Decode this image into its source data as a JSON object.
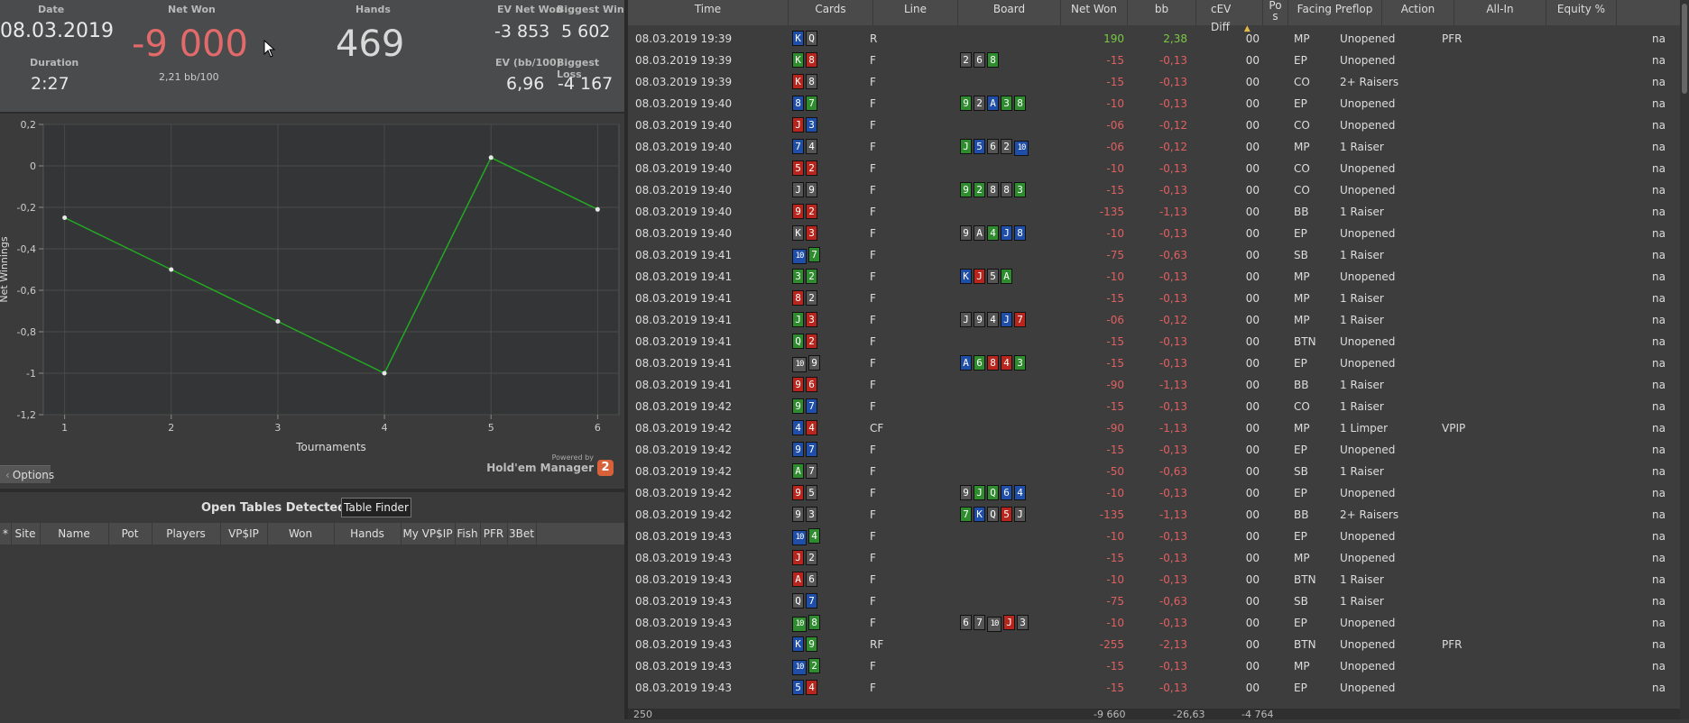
{
  "stats": {
    "date_label": "Date",
    "date_value": "08.03.2019",
    "net_won_label": "Net Won",
    "net_won_value": "-9 000",
    "net_won_sub": "2,21 bb/100",
    "hands_label": "Hands",
    "hands_value": "469",
    "ev_net_won_label": "EV Net Won",
    "ev_net_won_value": "-3 853",
    "biggest_win_label": "Biggest Win",
    "biggest_win_value": "5 602",
    "duration_label": "Duration",
    "duration_value": "2:27",
    "ev_bb_label": "EV (bb/100)",
    "ev_bb_value": "6,96",
    "biggest_loss_label": "Biggest Loss",
    "biggest_loss_value": "-4 167"
  },
  "chart_data": {
    "type": "line",
    "x": [
      1,
      2,
      3,
      4,
      5,
      6
    ],
    "series": [
      {
        "values": [
          -0.25,
          -0.5,
          -0.75,
          -1.0,
          0.04,
          -0.21
        ]
      }
    ],
    "xlabel": "Tournaments",
    "ylabel": "Net Winnings",
    "ylim": [
      -1.2,
      0.2
    ],
    "yticks": [
      "0,2",
      "0",
      "-0,2",
      "-0,4",
      "-0,6",
      "-0,8",
      "-1",
      "-1,2"
    ],
    "xticks": [
      "1",
      "2",
      "3",
      "4",
      "5",
      "6"
    ],
    "line_color": "#22aa22",
    "grid": true
  },
  "branding": {
    "powered_by": "Powered by",
    "product": "Hold'em Manager",
    "badge": "2"
  },
  "options_label": "Options",
  "open_tables": {
    "title": "Open Tables Detected",
    "finder_button": "Table Finder",
    "columns": [
      "*",
      "Site",
      "Name",
      "Pot",
      "Players",
      "VP$IP",
      "Won",
      "Hands",
      "My VP$IP",
      "Fish",
      "PFR",
      "3Bet"
    ]
  },
  "grid": {
    "columns": [
      "Time",
      "Cards",
      "Line",
      "Board",
      "Net Won",
      "bb",
      "cEV Diff",
      "Pos",
      "Facing Preflop",
      "Action",
      "All-In",
      "Equity %"
    ],
    "pos_header_top": "Po",
    "pos_header_bottom": "s",
    "rows": [
      {
        "time": "08.03.2019 19:39",
        "cards": [
          [
            "K",
            "d"
          ],
          [
            "Q",
            "s"
          ]
        ],
        "line": "R",
        "board": [],
        "net": "190",
        "bb": "2,38",
        "cev": "00",
        "pos": "MP",
        "facing": "Unopened",
        "action": "PFR",
        "equity": "na"
      },
      {
        "time": "08.03.2019 19:39",
        "cards": [
          [
            "K",
            "c"
          ],
          [
            "8",
            "h"
          ]
        ],
        "line": "F",
        "board": [
          [
            "2",
            "s"
          ],
          [
            "6",
            "s"
          ],
          [
            "8",
            "c"
          ]
        ],
        "net": "-15",
        "bb": "-0,13",
        "cev": "00",
        "pos": "EP",
        "facing": "Unopened",
        "action": "",
        "equity": "na"
      },
      {
        "time": "08.03.2019 19:39",
        "cards": [
          [
            "K",
            "h"
          ],
          [
            "8",
            "s"
          ]
        ],
        "line": "F",
        "board": [],
        "net": "-15",
        "bb": "-0,13",
        "cev": "00",
        "pos": "CO",
        "facing": "2+ Raisers",
        "action": "",
        "equity": "na"
      },
      {
        "time": "08.03.2019 19:40",
        "cards": [
          [
            "8",
            "d"
          ],
          [
            "7",
            "c"
          ]
        ],
        "line": "F",
        "board": [
          [
            "9",
            "c"
          ],
          [
            "2",
            "s"
          ],
          [
            "A",
            "d"
          ],
          [
            "3",
            "c"
          ],
          [
            "8",
            "c"
          ]
        ],
        "net": "-10",
        "bb": "-0,13",
        "cev": "00",
        "pos": "EP",
        "facing": "Unopened",
        "action": "",
        "equity": "na"
      },
      {
        "time": "08.03.2019 19:40",
        "cards": [
          [
            "J",
            "h"
          ],
          [
            "3",
            "d"
          ]
        ],
        "line": "F",
        "board": [],
        "net": "-06",
        "bb": "-0,12",
        "cev": "00",
        "pos": "CO",
        "facing": "Unopened",
        "action": "",
        "equity": "na"
      },
      {
        "time": "08.03.2019 19:40",
        "cards": [
          [
            "7",
            "d"
          ],
          [
            "4",
            "s"
          ]
        ],
        "line": "F",
        "board": [
          [
            "J",
            "c"
          ],
          [
            "5",
            "d"
          ],
          [
            "6",
            "s"
          ],
          [
            "2",
            "s"
          ],
          [
            "10",
            "d"
          ]
        ],
        "net": "-06",
        "bb": "-0,12",
        "cev": "00",
        "pos": "MP",
        "facing": "1 Raiser",
        "action": "",
        "equity": "na"
      },
      {
        "time": "08.03.2019 19:40",
        "cards": [
          [
            "5",
            "h"
          ],
          [
            "2",
            "h"
          ]
        ],
        "line": "F",
        "board": [],
        "net": "-10",
        "bb": "-0,13",
        "cev": "00",
        "pos": "CO",
        "facing": "Unopened",
        "action": "",
        "equity": "na"
      },
      {
        "time": "08.03.2019 19:40",
        "cards": [
          [
            "J",
            "s"
          ],
          [
            "9",
            "s"
          ]
        ],
        "line": "F",
        "board": [
          [
            "9",
            "c"
          ],
          [
            "2",
            "c"
          ],
          [
            "8",
            "s"
          ],
          [
            "8",
            "s"
          ],
          [
            "3",
            "c"
          ]
        ],
        "net": "-15",
        "bb": "-0,13",
        "cev": "00",
        "pos": "CO",
        "facing": "Unopened",
        "action": "",
        "equity": "na"
      },
      {
        "time": "08.03.2019 19:40",
        "cards": [
          [
            "9",
            "h"
          ],
          [
            "2",
            "h"
          ]
        ],
        "line": "F",
        "board": [],
        "net": "-135",
        "bb": "-1,13",
        "cev": "00",
        "pos": "BB",
        "facing": "1 Raiser",
        "action": "",
        "equity": "na"
      },
      {
        "time": "08.03.2019 19:40",
        "cards": [
          [
            "K",
            "s"
          ],
          [
            "3",
            "h"
          ]
        ],
        "line": "F",
        "board": [
          [
            "9",
            "s"
          ],
          [
            "A",
            "s"
          ],
          [
            "4",
            "c"
          ],
          [
            "J",
            "d"
          ],
          [
            "8",
            "d"
          ]
        ],
        "net": "-10",
        "bb": "-0,13",
        "cev": "00",
        "pos": "EP",
        "facing": "Unopened",
        "action": "",
        "equity": "na"
      },
      {
        "time": "08.03.2019 19:41",
        "cards": [
          [
            "10",
            "d"
          ],
          [
            "7",
            "c"
          ]
        ],
        "line": "F",
        "board": [],
        "net": "-75",
        "bb": "-0,63",
        "cev": "00",
        "pos": "SB",
        "facing": "1 Raiser",
        "action": "",
        "equity": "na"
      },
      {
        "time": "08.03.2019 19:41",
        "cards": [
          [
            "3",
            "c"
          ],
          [
            "2",
            "c"
          ]
        ],
        "line": "F",
        "board": [
          [
            "K",
            "d"
          ],
          [
            "J",
            "h"
          ],
          [
            "5",
            "s"
          ],
          [
            "A",
            "c"
          ]
        ],
        "net": "-10",
        "bb": "-0,13",
        "cev": "00",
        "pos": "MP",
        "facing": "Unopened",
        "action": "",
        "equity": "na"
      },
      {
        "time": "08.03.2019 19:41",
        "cards": [
          [
            "8",
            "h"
          ],
          [
            "2",
            "s"
          ]
        ],
        "line": "F",
        "board": [],
        "net": "-15",
        "bb": "-0,13",
        "cev": "00",
        "pos": "MP",
        "facing": "1 Raiser",
        "action": "",
        "equity": "na"
      },
      {
        "time": "08.03.2019 19:41",
        "cards": [
          [
            "J",
            "c"
          ],
          [
            "3",
            "h"
          ]
        ],
        "line": "F",
        "board": [
          [
            "J",
            "s"
          ],
          [
            "9",
            "s"
          ],
          [
            "4",
            "s"
          ],
          [
            "J",
            "d"
          ],
          [
            "7",
            "h"
          ]
        ],
        "net": "-06",
        "bb": "-0,12",
        "cev": "00",
        "pos": "MP",
        "facing": "1 Raiser",
        "action": "",
        "equity": "na"
      },
      {
        "time": "08.03.2019 19:41",
        "cards": [
          [
            "Q",
            "c"
          ],
          [
            "2",
            "h"
          ]
        ],
        "line": "F",
        "board": [],
        "net": "-15",
        "bb": "-0,13",
        "cev": "00",
        "pos": "BTN",
        "facing": "Unopened",
        "action": "",
        "equity": "na"
      },
      {
        "time": "08.03.2019 19:41",
        "cards": [
          [
            "10",
            "s"
          ],
          [
            "9",
            "s"
          ]
        ],
        "line": "F",
        "board": [
          [
            "A",
            "d"
          ],
          [
            "6",
            "c"
          ],
          [
            "8",
            "h"
          ],
          [
            "4",
            "h"
          ],
          [
            "3",
            "c"
          ]
        ],
        "net": "-15",
        "bb": "-0,13",
        "cev": "00",
        "pos": "EP",
        "facing": "Unopened",
        "action": "",
        "equity": "na"
      },
      {
        "time": "08.03.2019 19:41",
        "cards": [
          [
            "9",
            "h"
          ],
          [
            "6",
            "h"
          ]
        ],
        "line": "F",
        "board": [],
        "net": "-90",
        "bb": "-1,13",
        "cev": "00",
        "pos": "BB",
        "facing": "1 Raiser",
        "action": "",
        "equity": "na"
      },
      {
        "time": "08.03.2019 19:42",
        "cards": [
          [
            "9",
            "c"
          ],
          [
            "7",
            "d"
          ]
        ],
        "line": "F",
        "board": [],
        "net": "-15",
        "bb": "-0,13",
        "cev": "00",
        "pos": "CO",
        "facing": "1 Raiser",
        "action": "",
        "equity": "na"
      },
      {
        "time": "08.03.2019 19:42",
        "cards": [
          [
            "4",
            "d"
          ],
          [
            "4",
            "h"
          ]
        ],
        "line": "CF",
        "board": [],
        "net": "-90",
        "bb": "-1,13",
        "cev": "00",
        "pos": "MP",
        "facing": "1 Limper",
        "action": "VPIP",
        "equity": "na"
      },
      {
        "time": "08.03.2019 19:42",
        "cards": [
          [
            "9",
            "d"
          ],
          [
            "7",
            "d"
          ]
        ],
        "line": "F",
        "board": [],
        "net": "-15",
        "bb": "-0,13",
        "cev": "00",
        "pos": "EP",
        "facing": "Unopened",
        "action": "",
        "equity": "na"
      },
      {
        "time": "08.03.2019 19:42",
        "cards": [
          [
            "A",
            "c"
          ],
          [
            "7",
            "s"
          ]
        ],
        "line": "F",
        "board": [],
        "net": "-50",
        "bb": "-0,63",
        "cev": "00",
        "pos": "SB",
        "facing": "1 Raiser",
        "action": "",
        "equity": "na"
      },
      {
        "time": "08.03.2019 19:42",
        "cards": [
          [
            "9",
            "h"
          ],
          [
            "5",
            "s"
          ]
        ],
        "line": "F",
        "board": [
          [
            "9",
            "s"
          ],
          [
            "J",
            "c"
          ],
          [
            "Q",
            "c"
          ],
          [
            "6",
            "d"
          ],
          [
            "4",
            "d"
          ]
        ],
        "net": "-10",
        "bb": "-0,13",
        "cev": "00",
        "pos": "EP",
        "facing": "Unopened",
        "action": "",
        "equity": "na"
      },
      {
        "time": "08.03.2019 19:42",
        "cards": [
          [
            "9",
            "s"
          ],
          [
            "3",
            "s"
          ]
        ],
        "line": "F",
        "board": [
          [
            "7",
            "c"
          ],
          [
            "K",
            "d"
          ],
          [
            "Q",
            "s"
          ],
          [
            "5",
            "h"
          ],
          [
            "J",
            "s"
          ]
        ],
        "net": "-135",
        "bb": "-1,13",
        "cev": "00",
        "pos": "BB",
        "facing": "2+ Raisers",
        "action": "",
        "equity": "na"
      },
      {
        "time": "08.03.2019 19:43",
        "cards": [
          [
            "10",
            "d"
          ],
          [
            "4",
            "c"
          ]
        ],
        "line": "F",
        "board": [],
        "net": "-10",
        "bb": "-0,13",
        "cev": "00",
        "pos": "EP",
        "facing": "Unopened",
        "action": "",
        "equity": "na"
      },
      {
        "time": "08.03.2019 19:43",
        "cards": [
          [
            "J",
            "h"
          ],
          [
            "2",
            "s"
          ]
        ],
        "line": "F",
        "board": [],
        "net": "-15",
        "bb": "-0,13",
        "cev": "00",
        "pos": "MP",
        "facing": "Unopened",
        "action": "",
        "equity": "na"
      },
      {
        "time": "08.03.2019 19:43",
        "cards": [
          [
            "A",
            "h"
          ],
          [
            "6",
            "s"
          ]
        ],
        "line": "F",
        "board": [],
        "net": "-10",
        "bb": "-0,13",
        "cev": "00",
        "pos": "BTN",
        "facing": "1 Raiser",
        "action": "",
        "equity": "na"
      },
      {
        "time": "08.03.2019 19:43",
        "cards": [
          [
            "Q",
            "s"
          ],
          [
            "7",
            "d"
          ]
        ],
        "line": "F",
        "board": [],
        "net": "-75",
        "bb": "-0,63",
        "cev": "00",
        "pos": "SB",
        "facing": "1 Raiser",
        "action": "",
        "equity": "na"
      },
      {
        "time": "08.03.2019 19:43",
        "cards": [
          [
            "10",
            "c"
          ],
          [
            "8",
            "c"
          ]
        ],
        "line": "F",
        "board": [
          [
            "6",
            "s"
          ],
          [
            "7",
            "s"
          ],
          [
            "10",
            "s"
          ],
          [
            "J",
            "h"
          ],
          [
            "3",
            "s"
          ]
        ],
        "net": "-10",
        "bb": "-0,13",
        "cev": "00",
        "pos": "EP",
        "facing": "Unopened",
        "action": "",
        "equity": "na"
      },
      {
        "time": "08.03.2019 19:43",
        "cards": [
          [
            "K",
            "d"
          ],
          [
            "9",
            "c"
          ]
        ],
        "line": "RF",
        "board": [],
        "net": "-255",
        "bb": "-2,13",
        "cev": "00",
        "pos": "BTN",
        "facing": "Unopened",
        "action": "PFR",
        "equity": "na"
      },
      {
        "time": "08.03.2019 19:43",
        "cards": [
          [
            "10",
            "d"
          ],
          [
            "2",
            "c"
          ]
        ],
        "line": "F",
        "board": [],
        "net": "-15",
        "bb": "-0,13",
        "cev": "00",
        "pos": "MP",
        "facing": "Unopened",
        "action": "",
        "equity": "na"
      },
      {
        "time": "08.03.2019 19:43",
        "cards": [
          [
            "5",
            "d"
          ],
          [
            "4",
            "h"
          ]
        ],
        "line": "F",
        "board": [],
        "net": "-15",
        "bb": "-0,13",
        "cev": "00",
        "pos": "EP",
        "facing": "Unopened",
        "action": "",
        "equity": "na"
      }
    ],
    "footer": {
      "count": "250",
      "net": "-9 660",
      "bb": "-26,63",
      "cev": "-4 764"
    }
  }
}
